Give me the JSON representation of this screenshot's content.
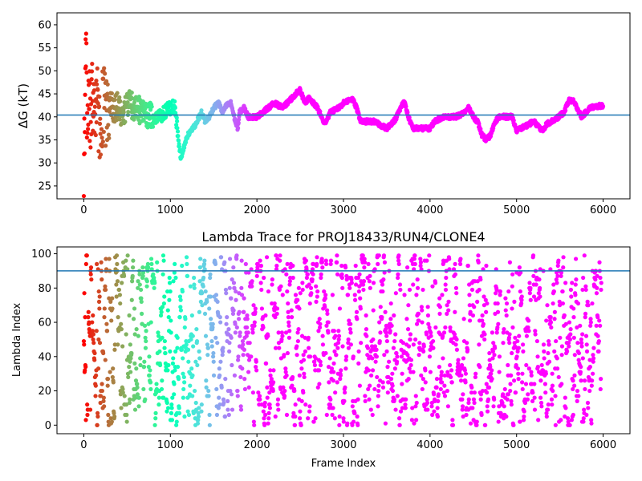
{
  "chart_data": [
    {
      "type": "scatter",
      "title": "",
      "xlabel": "",
      "ylabel": "ΔG (kT)",
      "xlim": [
        -310,
        6310
      ],
      "ylim": [
        22.2,
        62.6
      ],
      "xticks": [
        0,
        1000,
        2000,
        3000,
        4000,
        5000,
        6000
      ],
      "yticks": [
        25,
        30,
        35,
        40,
        45,
        50,
        55,
        60
      ],
      "hline": {
        "y": 40.4,
        "color": "#1f77b4"
      },
      "colormap": "rainbow",
      "color_encoding": "frame index (red at 0, violet from ~2000 on)",
      "trace_waypoints": [
        [
          0,
          30
        ],
        [
          20,
          50
        ],
        [
          40,
          36
        ],
        [
          60,
          45
        ],
        [
          80,
          38
        ],
        [
          100,
          44
        ],
        [
          120,
          40
        ],
        [
          150,
          46
        ],
        [
          180,
          38
        ],
        [
          220,
          43
        ],
        [
          260,
          40
        ],
        [
          300,
          44
        ],
        [
          350,
          41
        ],
        [
          400,
          43
        ],
        [
          450,
          40
        ],
        [
          500,
          43
        ],
        [
          600,
          42
        ],
        [
          700,
          41
        ],
        [
          800,
          40
        ],
        [
          900,
          40.5
        ],
        [
          1000,
          42
        ],
        [
          1050,
          42.5
        ],
        [
          1100,
          34
        ],
        [
          1120,
          31
        ],
        [
          1150,
          33
        ],
        [
          1200,
          36
        ],
        [
          1280,
          38
        ],
        [
          1360,
          41
        ],
        [
          1400,
          39
        ],
        [
          1450,
          40
        ],
        [
          1500,
          42
        ],
        [
          1560,
          43
        ],
        [
          1600,
          41
        ],
        [
          1650,
          42.5
        ],
        [
          1700,
          43
        ],
        [
          1750,
          39
        ],
        [
          1780,
          37.5
        ],
        [
          1800,
          41
        ],
        [
          1850,
          42
        ],
        [
          1900,
          40
        ],
        [
          2000,
          40
        ],
        [
          2100,
          41.5
        ],
        [
          2200,
          43
        ],
        [
          2300,
          42
        ],
        [
          2400,
          44
        ],
        [
          2500,
          46
        ],
        [
          2550,
          43
        ],
        [
          2600,
          44
        ],
        [
          2700,
          42
        ],
        [
          2780,
          38.5
        ],
        [
          2850,
          41
        ],
        [
          2950,
          42
        ],
        [
          3000,
          43
        ],
        [
          3100,
          44
        ],
        [
          3150,
          42
        ],
        [
          3200,
          39
        ],
        [
          3350,
          39
        ],
        [
          3450,
          38
        ],
        [
          3500,
          37.5
        ],
        [
          3600,
          39.5
        ],
        [
          3700,
          43.5
        ],
        [
          3750,
          40
        ],
        [
          3800,
          37.5
        ],
        [
          3900,
          37.5
        ],
        [
          4000,
          37.5
        ],
        [
          4050,
          39
        ],
        [
          4150,
          40
        ],
        [
          4300,
          40
        ],
        [
          4400,
          41
        ],
        [
          4450,
          42
        ],
        [
          4500,
          40
        ],
        [
          4550,
          39
        ],
        [
          4600,
          36
        ],
        [
          4650,
          35
        ],
        [
          4700,
          36
        ],
        [
          4750,
          39
        ],
        [
          4800,
          40
        ],
        [
          4950,
          40
        ],
        [
          5000,
          37
        ],
        [
          5100,
          38
        ],
        [
          5200,
          39
        ],
        [
          5300,
          37
        ],
        [
          5350,
          38.5
        ],
        [
          5450,
          39.5
        ],
        [
          5550,
          41
        ],
        [
          5600,
          43.5
        ],
        [
          5650,
          43.5
        ],
        [
          5700,
          42
        ],
        [
          5750,
          40
        ],
        [
          5800,
          41
        ],
        [
          5850,
          42
        ],
        [
          6000,
          42.5
        ]
      ]
    },
    {
      "type": "scatter",
      "title": "Lambda Trace for PROJ18433/RUN4/CLONE4",
      "xlabel": "Frame Index",
      "ylabel": "Lambda Index",
      "xlim": [
        -310,
        6310
      ],
      "ylim": [
        -5,
        104
      ],
      "xticks": [
        0,
        1000,
        2000,
        3000,
        4000,
        5000,
        6000
      ],
      "yticks": [
        0,
        20,
        40,
        60,
        80,
        100
      ],
      "hline": {
        "y": 90,
        "color": "#1f77b4"
      },
      "colormap": "rainbow",
      "color_encoding": "frame index (red at 0, violet from ~2000 on)",
      "n_frames": 6000,
      "value_range": [
        0,
        99
      ]
    }
  ]
}
